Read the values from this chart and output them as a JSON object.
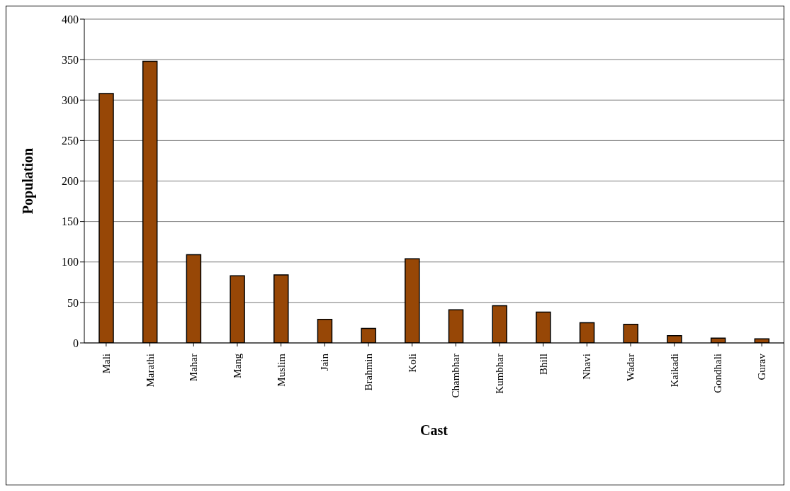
{
  "chart_data": {
    "type": "bar",
    "xlabel": "Cast",
    "ylabel": "Population",
    "categories": [
      "Mali",
      "Marathi",
      "Mahar",
      "Mang",
      "Muslim",
      "Jain",
      "Brahmin",
      "Koli",
      "Chambhar",
      "Kumbhar",
      "Bhill",
      "Nhavi",
      "Wadar",
      "Kaikadi",
      "Gondhali",
      "Gurav"
    ],
    "values": [
      308,
      348,
      109,
      83,
      84,
      29,
      18,
      104,
      41,
      46,
      38,
      25,
      23,
      9,
      6,
      5
    ],
    "color": "#974706",
    "ylim": [
      0,
      400
    ],
    "yticks": [
      0,
      50,
      100,
      150,
      200,
      250,
      300,
      350,
      400
    ],
    "grid": "y"
  }
}
